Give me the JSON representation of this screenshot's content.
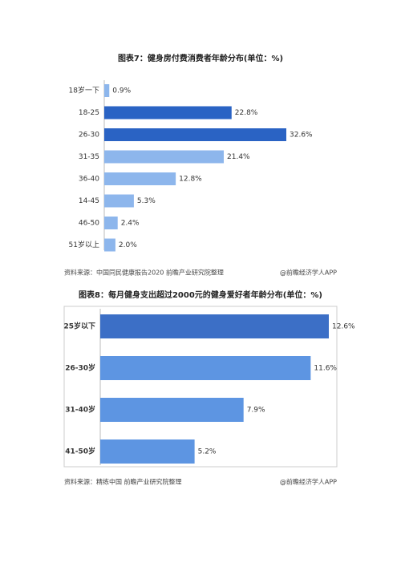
{
  "chart_data": [
    {
      "type": "bar",
      "orientation": "horizontal",
      "title": "图表7：健身房付费消费者年龄分布(单位：%)",
      "categories": [
        "18岁一下",
        "18-25",
        "26-30",
        "31-35",
        "36-40",
        "14-45",
        "46-50",
        "51岁以上"
      ],
      "values": [
        0.9,
        22.8,
        32.6,
        21.4,
        12.8,
        5.3,
        2.4,
        2.0
      ],
      "value_labels": [
        "0.9%",
        "22.8%",
        "32.6%",
        "21.4%",
        "12.8%",
        "5.3%",
        "2.4%",
        "2.0%"
      ],
      "colors": [
        "#8db6ec",
        "#2a63c4",
        "#2a63c4",
        "#8db6ec",
        "#8db6ec",
        "#8db6ec",
        "#8db6ec",
        "#8db6ec"
      ],
      "source": "资料来源：中国同民健康报告2020 前瞻产业研究院整理",
      "credit": "@前瞻经济学人APP"
    },
    {
      "type": "bar",
      "orientation": "horizontal",
      "title": "图表8：每月健身支出超过2000元的健身爱好者年龄分布(单位：%)",
      "categories": [
        "25岁以下",
        "26-30岁",
        "31-40岁",
        "41-50岁"
      ],
      "values": [
        12.6,
        11.6,
        7.9,
        5.2
      ],
      "value_labels": [
        "12.6%",
        "11.6%",
        "7.9%",
        "5.2%"
      ],
      "colors": [
        "#3c6fc6",
        "#5d95e2",
        "#5d95e2",
        "#5d95e2"
      ],
      "source": "资料来源：精练中国 前瞻产业研究院整理",
      "credit": "@前瞻经济学人APP"
    }
  ]
}
